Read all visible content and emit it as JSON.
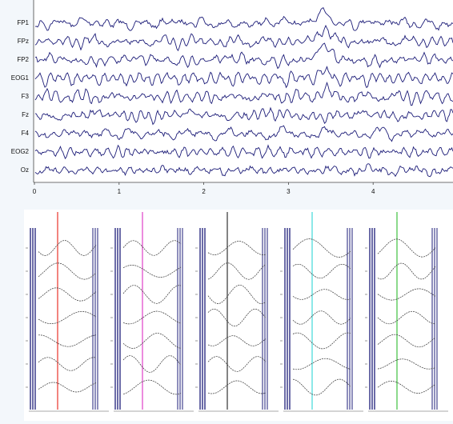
{
  "eeg_plot": {
    "channels": [
      "FP1",
      "FPz",
      "FP2",
      "EOG1",
      "F3",
      "Fz",
      "F4",
      "EOG2",
      "Oz"
    ],
    "x_ticks": [
      "0",
      "1",
      "2",
      "3",
      "4"
    ]
  }
}
